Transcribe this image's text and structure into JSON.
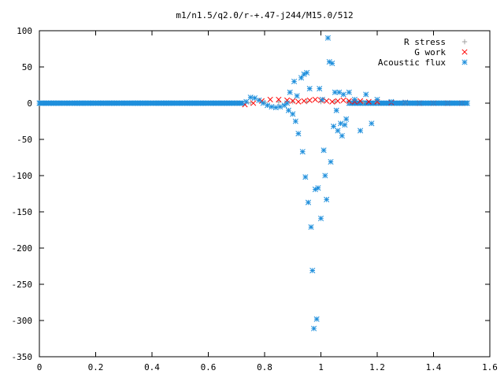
{
  "chart_data": {
    "type": "scatter",
    "title": "m1/n1.5/q2.0/r-+.47-j244/M15.0/512",
    "xlim": [
      0,
      1.6
    ],
    "ylim": [
      -350,
      100
    ],
    "x_ticks": [
      "0",
      "0.2",
      "0.4",
      "0.6",
      "0.8",
      "1",
      "1.2",
      "1.4",
      "1.6"
    ],
    "y_ticks": [
      "100",
      "50",
      "0",
      "-50",
      "-100",
      "-150",
      "-200",
      "-250",
      "-300",
      "-350"
    ],
    "legend_position": "top-right",
    "grid": false,
    "series": [
      {
        "name": "R stress",
        "marker": "plus",
        "color": "#a0a0a0",
        "x": [
          0.0,
          0.2,
          0.4,
          0.6,
          0.7,
          0.75,
          0.8,
          0.85,
          0.9,
          0.95,
          1.0,
          1.05,
          1.1,
          1.15,
          1.2,
          1.3,
          1.4,
          1.52
        ],
        "y": [
          0,
          0,
          0,
          0,
          0,
          0.5,
          1,
          1.5,
          2,
          2,
          2,
          2,
          1.5,
          1,
          1,
          0.5,
          0,
          0
        ]
      },
      {
        "name": "G work",
        "marker": "cross",
        "color": "#ff0000",
        "x": [
          0.73,
          0.76,
          0.79,
          0.82,
          0.85,
          0.88,
          0.9,
          0.92,
          0.94,
          0.96,
          0.98,
          1.0,
          1.02,
          1.04,
          1.06,
          1.08,
          1.1,
          1.12,
          1.14,
          1.17,
          1.2,
          1.25,
          1.3,
          1.35,
          1.4,
          1.45,
          1.5
        ],
        "y": [
          -2,
          0,
          3,
          5,
          5,
          4,
          3,
          2,
          3,
          4,
          5,
          4,
          3,
          2,
          3,
          4,
          3,
          2,
          3,
          2,
          2,
          1,
          1,
          0,
          0,
          0,
          0
        ]
      },
      {
        "name": "Acoustic flux",
        "marker": "star",
        "color": "#1f8fdc",
        "x": [
          0.0,
          0.025,
          0.05,
          0.075,
          0.1,
          0.125,
          0.15,
          0.175,
          0.2,
          0.225,
          0.25,
          0.275,
          0.3,
          0.325,
          0.35,
          0.375,
          0.4,
          0.425,
          0.45,
          0.475,
          0.5,
          0.525,
          0.55,
          0.575,
          0.6,
          0.625,
          0.65,
          0.675,
          0.7,
          0.72,
          0.735,
          0.75,
          0.765,
          0.78,
          0.795,
          0.81,
          0.825,
          0.84,
          0.855,
          0.87,
          0.88,
          0.885,
          0.89,
          0.9,
          0.905,
          0.91,
          0.915,
          0.92,
          0.93,
          0.935,
          0.94,
          0.945,
          0.95,
          0.955,
          0.96,
          0.965,
          0.97,
          0.975,
          0.98,
          0.985,
          0.99,
          0.995,
          1.0,
          1.005,
          1.01,
          1.015,
          1.02,
          1.025,
          1.03,
          1.035,
          1.04,
          1.045,
          1.05,
          1.055,
          1.06,
          1.065,
          1.07,
          1.075,
          1.08,
          1.085,
          1.09,
          1.1,
          1.12,
          1.14,
          1.16,
          1.18,
          1.2,
          1.25,
          1.3,
          1.35,
          1.4,
          1.45,
          1.5,
          1.52
        ],
        "y": [
          0,
          0,
          0,
          0,
          0,
          0,
          0,
          0,
          0,
          0,
          0,
          0,
          0,
          0,
          0,
          0,
          0,
          0,
          0,
          0,
          0,
          0,
          0,
          0,
          0,
          0,
          0,
          0,
          0,
          0,
          2,
          8,
          7,
          4,
          0,
          -3,
          -5,
          -6,
          -5,
          -3,
          0,
          -10,
          15,
          -15,
          30,
          -25,
          10,
          -42,
          35,
          -67,
          40,
          -102,
          42,
          -137,
          20,
          -171,
          -231,
          -311,
          -119,
          -298,
          -117,
          20,
          -159,
          5,
          -65,
          -100,
          -133,
          90,
          57,
          -81,
          55,
          -32,
          15,
          -10,
          -38,
          15,
          -28,
          -45,
          12,
          -30,
          -22,
          15,
          5,
          -38,
          12,
          -28,
          5,
          2,
          1,
          0,
          0,
          0,
          0,
          0
        ]
      }
    ]
  }
}
